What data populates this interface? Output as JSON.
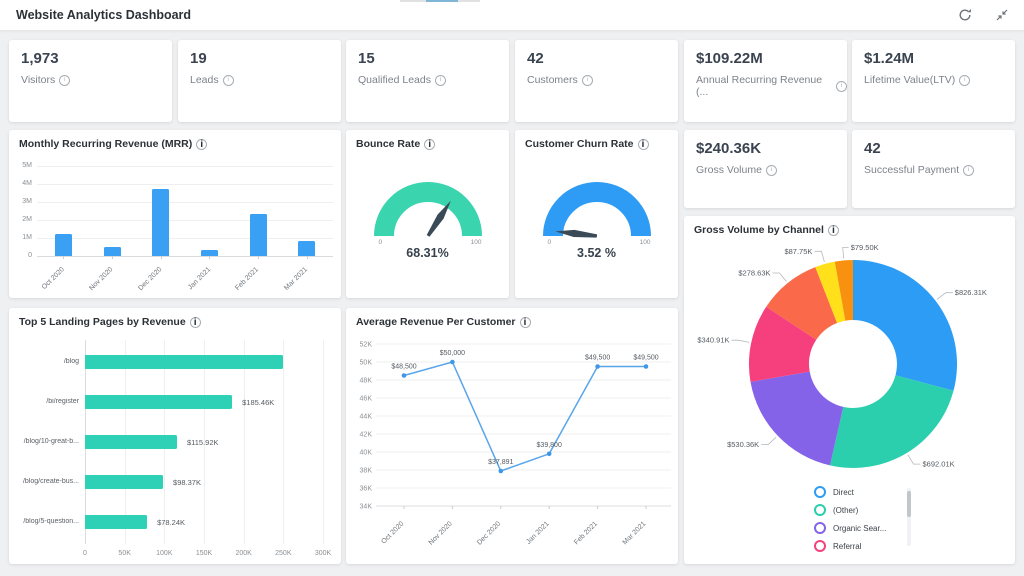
{
  "header": {
    "title": "Website Analytics Dashboard",
    "icons": [
      "refresh-icon",
      "exit-fullscreen-icon"
    ]
  },
  "kpis": [
    {
      "value": "1,973",
      "label": "Visitors"
    },
    {
      "value": "19",
      "label": "Leads"
    },
    {
      "value": "15",
      "label": "Qualified Leads"
    },
    {
      "value": "42",
      "label": "Customers"
    },
    {
      "value": "$109.22M",
      "label": "Annual Recurring Revenue (..."
    },
    {
      "value": "$1.24M",
      "label": "Lifetime Value(LTV)"
    },
    {
      "value": "$240.36K",
      "label": "Gross Volume"
    },
    {
      "value": "42",
      "label": "Successful Payment"
    }
  ],
  "chart_data": [
    {
      "id": "mrr",
      "type": "bar",
      "title": "Monthly Recurring Revenue (MRR)",
      "categories": [
        "Oct 2020",
        "Nov 2020",
        "Dec 2020",
        "Jan 2021",
        "Feb 2021",
        "Mar 2021"
      ],
      "values": [
        1.23,
        0.52,
        3.7,
        0.35,
        2.35,
        0.85
      ],
      "unit": "M",
      "xlabel": "",
      "ylabel": "",
      "ylim": [
        0,
        5
      ],
      "yticks": [
        "0",
        "1M",
        "2M",
        "3M",
        "4M",
        "5M"
      ],
      "grid": true,
      "bar_color": "#3aa0f4"
    },
    {
      "id": "bounce_rate",
      "type": "gauge",
      "title": "Bounce Rate",
      "value": 68.31,
      "display": "68.31%",
      "min": 0,
      "max": 100,
      "color": "#3ad4af",
      "needle_color": "#3a4a57"
    },
    {
      "id": "customer_churn_rate",
      "type": "gauge",
      "title": "Customer Churn Rate",
      "value": 3.52,
      "display": "3.52 %",
      "min": 0,
      "max": 100,
      "color": "#2e9cf4",
      "needle_color": "#3a4a57"
    },
    {
      "id": "top5_landing_pages",
      "type": "bar-horizontal",
      "title": "Top 5 Landing Pages by Revenue",
      "categories": [
        "/blog",
        "/bi/register",
        "/blog/10-great-b...",
        "/blog/create-bus...",
        "/blog/5-question..."
      ],
      "values": [
        250,
        185.46,
        115.92,
        98.37,
        78.24
      ],
      "unit": "K",
      "data_labels": [
        "",
        "$185.46K",
        "$115.92K",
        "$98.37K",
        "$78.24K"
      ],
      "xlim": [
        0,
        300
      ],
      "xticks": [
        "0",
        "50K",
        "100K",
        "150K",
        "200K",
        "250K",
        "300K"
      ],
      "grid": true,
      "bar_color": "#2ed1b5"
    },
    {
      "id": "avg_revenue_per_customer",
      "type": "line",
      "title": "Average Revenue Per Customer",
      "categories": [
        "Oct 2020",
        "Nov 2020",
        "Dec 2020",
        "Jan 2021",
        "Feb 2021",
        "Mar 2021"
      ],
      "values": [
        48500,
        50000,
        37891,
        39800,
        49500,
        49500
      ],
      "data_labels": [
        "$48,500",
        "$50,000",
        "$37,891",
        "$39,800",
        "$49,500",
        "$49,500"
      ],
      "ylim": [
        34000,
        52000
      ],
      "yticks": [
        "52K",
        "50K",
        "48K",
        "46K",
        "44K",
        "42K",
        "40K",
        "38K",
        "36K",
        "34K"
      ],
      "grid": true,
      "line_color": "#58a5ea",
      "marker_color": "#3f97e8"
    },
    {
      "id": "gross_volume_by_channel",
      "type": "pie",
      "title": "Gross Volume by Channel",
      "slices": [
        {
          "name": "Direct",
          "label": "$826.31K",
          "value": 826.31,
          "color": "#2d9cf4"
        },
        {
          "name": "(Other)",
          "label": "$692.01K",
          "value": 692.01,
          "color": "#2bcfad"
        },
        {
          "name": "Organic Sear...",
          "label": "$530.36K",
          "value": 530.36,
          "color": "#8463e9"
        },
        {
          "name": "Referral",
          "label": "$340.91K",
          "value": 340.91,
          "color": "#f5407d"
        },
        {
          "name": "",
          "label": "$278.63K",
          "value": 278.63,
          "color": "#fa6a4a"
        },
        {
          "name": "",
          "label": "$87.75K",
          "value": 87.75,
          "color": "#ffe01a"
        },
        {
          "name": "",
          "label": "$79.50K",
          "value": 79.5,
          "color": "#f99110"
        }
      ],
      "legend": [
        "Direct",
        "(Other)",
        "Organic Sear...",
        "Referral"
      ],
      "legend_position": "bottom",
      "donut": true
    }
  ]
}
